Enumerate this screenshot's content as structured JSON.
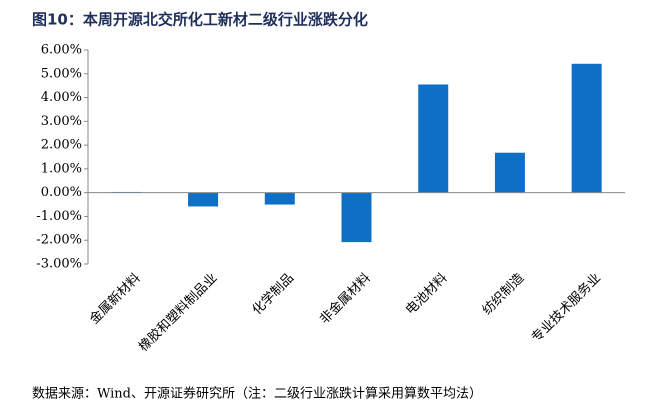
{
  "chart_data": {
    "type": "bar",
    "title": "图10：本周开源北交所化工新材二级行业涨跌分化",
    "source": "数据来源：Wind、开源证券研究所（注：二级行业涨跌计算采用算数平均法）",
    "categories": [
      "金属新材料",
      "橡胶和塑料制品业",
      "化学制品",
      "非金属材料",
      "电池材料",
      "纺织制造",
      "专业技术服务业"
    ],
    "values": [
      0.03,
      -0.58,
      -0.5,
      -2.08,
      4.55,
      1.68,
      5.42
    ],
    "color": "#0f6fc6",
    "ylim": [
      -3,
      6
    ],
    "yticks": [
      {
        "value": -3,
        "label": "-3.00%"
      },
      {
        "value": -2,
        "label": "-2.00%"
      },
      {
        "value": -1,
        "label": "-1.00%"
      },
      {
        "value": 0,
        "label": "0.00%"
      },
      {
        "value": 1,
        "label": "1.00%"
      },
      {
        "value": 2,
        "label": "2.00%"
      },
      {
        "value": 3,
        "label": "3.00%"
      },
      {
        "value": 4,
        "label": "4.00%"
      },
      {
        "value": 5,
        "label": "5.00%"
      },
      {
        "value": 6,
        "label": "6.00%"
      }
    ],
    "grid": false
  }
}
